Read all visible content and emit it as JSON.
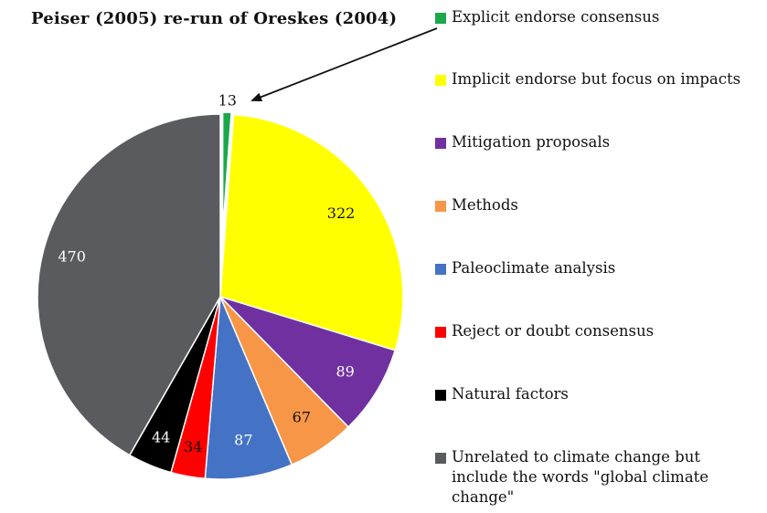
{
  "chart_data": {
    "type": "pie",
    "title": "Peiser (2005) re-run of Oreskes (2004)",
    "legend_position": "right",
    "slices": [
      {
        "label": "Explicit endorse consensus",
        "value": 13,
        "color": "#1aa84a",
        "label_color": "#111111"
      },
      {
        "label": "Implicit endorse but focus on impacts",
        "value": 322,
        "color": "#ffff00",
        "label_color": "#111111"
      },
      {
        "label": "Mitigation proposals",
        "value": 89,
        "color": "#7030a0",
        "label_color": "#ffffff"
      },
      {
        "label": "Methods",
        "value": 67,
        "color": "#f79646",
        "label_color": "#111111"
      },
      {
        "label": "Paleoclimate analysis",
        "value": 87,
        "color": "#4472c4",
        "label_color": "#ffffff"
      },
      {
        "label": "Reject or doubt consensus",
        "value": 34,
        "color": "#ff0000",
        "label_color": "#111111"
      },
      {
        "label": "Natural factors",
        "value": 44,
        "color": "#000000",
        "label_color": "#ffffff"
      },
      {
        "label": "Unrelated to climate change but include the words \"global climate change\"",
        "value": 470,
        "color": "#595b5f",
        "label_color": "#ffffff"
      }
    ]
  }
}
